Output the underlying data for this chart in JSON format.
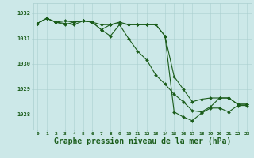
{
  "bg_color": "#cce8e8",
  "line_color": "#1a5c1a",
  "grid_color": "#aacfcf",
  "xlabel": "Graphe pression niveau de la mer (hPa)",
  "xlabel_fontsize": 7.0,
  "ylabel_ticks": [
    1028,
    1029,
    1030,
    1031,
    1032
  ],
  "xlim": [
    -0.5,
    23.5
  ],
  "ylim": [
    1027.4,
    1032.4
  ],
  "series1_x": [
    0,
    1,
    2,
    3,
    4,
    5,
    6,
    7,
    8,
    9,
    10,
    11,
    12,
    13,
    14,
    15,
    16,
    17,
    18,
    19,
    20,
    21,
    22,
    23
  ],
  "series1_y": [
    1031.6,
    1031.8,
    1031.65,
    1031.7,
    1031.65,
    1031.7,
    1031.65,
    1031.35,
    1031.55,
    1031.65,
    1031.55,
    1031.55,
    1031.55,
    1031.55,
    1031.1,
    1029.5,
    1029.0,
    1028.5,
    1028.6,
    1028.65,
    1028.65,
    1028.65,
    1028.4,
    1028.4
  ],
  "series2_x": [
    0,
    1,
    2,
    3,
    4,
    5,
    6,
    7,
    8,
    9,
    10,
    11,
    12,
    13,
    14,
    15,
    16,
    17,
    18,
    19,
    20,
    21,
    22,
    23
  ],
  "series2_y": [
    1031.6,
    1031.8,
    1031.65,
    1031.55,
    1031.65,
    1031.7,
    1031.65,
    1031.35,
    1031.1,
    1031.55,
    1031.0,
    1030.5,
    1030.15,
    1029.55,
    1029.2,
    1028.8,
    1028.5,
    1028.15,
    1028.1,
    1028.3,
    1028.65,
    1028.65,
    1028.4,
    1028.4
  ],
  "series3_x": [
    0,
    1,
    2,
    3,
    4,
    5,
    6,
    7,
    8,
    9,
    10,
    11,
    12,
    13,
    14,
    15,
    16,
    17,
    18,
    19,
    20,
    21,
    22,
    23
  ],
  "series3_y": [
    1031.6,
    1031.8,
    1031.65,
    1031.6,
    1031.55,
    1031.7,
    1031.65,
    1031.55,
    1031.55,
    1031.6,
    1031.55,
    1031.55,
    1031.55,
    1031.55,
    1031.1,
    1028.1,
    1027.9,
    1027.75,
    1028.05,
    1028.25,
    1028.25,
    1028.1,
    1028.35,
    1028.35
  ],
  "xtick_labels": [
    "0",
    "1",
    "2",
    "3",
    "4",
    "5",
    "6",
    "7",
    "8",
    "9",
    "10",
    "11",
    "12",
    "13",
    "14",
    "15",
    "16",
    "17",
    "18",
    "19",
    "20",
    "21",
    "22",
    "23"
  ],
  "markersize": 2.0,
  "linewidth": 0.8
}
